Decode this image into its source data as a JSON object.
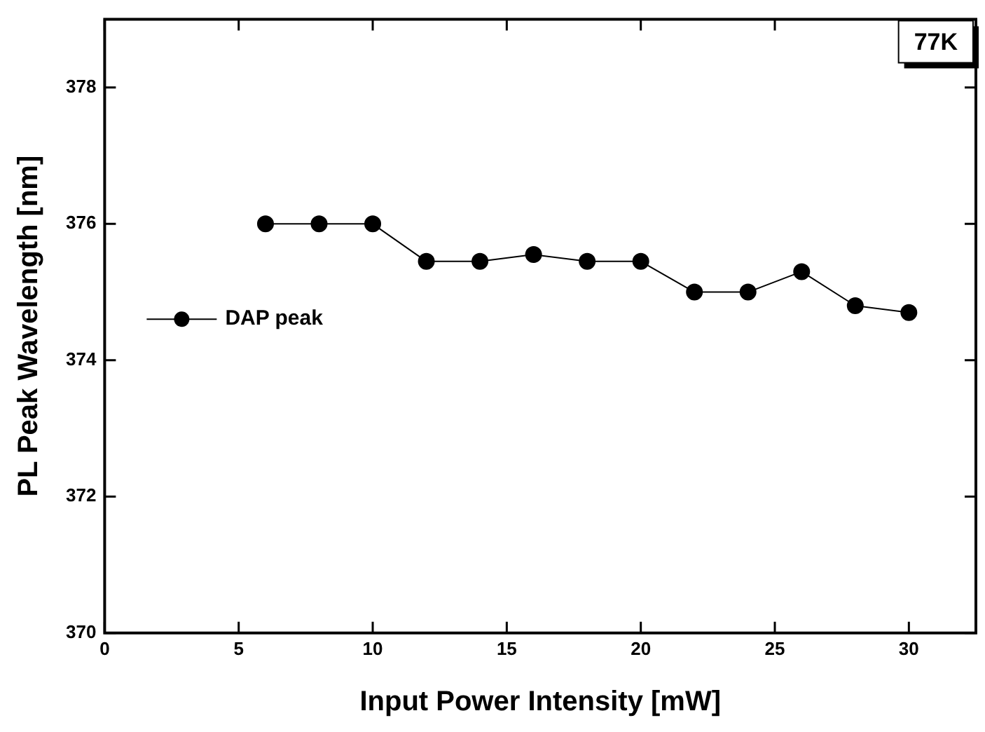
{
  "chart_data": {
    "type": "line",
    "xlabel": "Input Power Intensity [mW]",
    "ylabel": "PL Peak Wavelength [nm]",
    "x": [
      6,
      8,
      10,
      12,
      14,
      16,
      18,
      20,
      22,
      24,
      26,
      28,
      30
    ],
    "series": [
      {
        "name": "DAP peak",
        "color": "#000000",
        "values": [
          376,
          376,
          376,
          375.45,
          375.45,
          375.55,
          375.45,
          375.45,
          375,
          375,
          375.3,
          374.8,
          374.7
        ]
      }
    ],
    "xlim": [
      0,
      32.5
    ],
    "xticks": [
      0,
      5,
      10,
      15,
      20,
      25,
      30
    ],
    "ylim": [
      370,
      379
    ],
    "yticks": [
      370,
      372,
      374,
      376,
      378
    ],
    "grid": false,
    "legend": "left",
    "marker": "circle",
    "line_style": "solid",
    "annotations": [
      "77K"
    ]
  }
}
